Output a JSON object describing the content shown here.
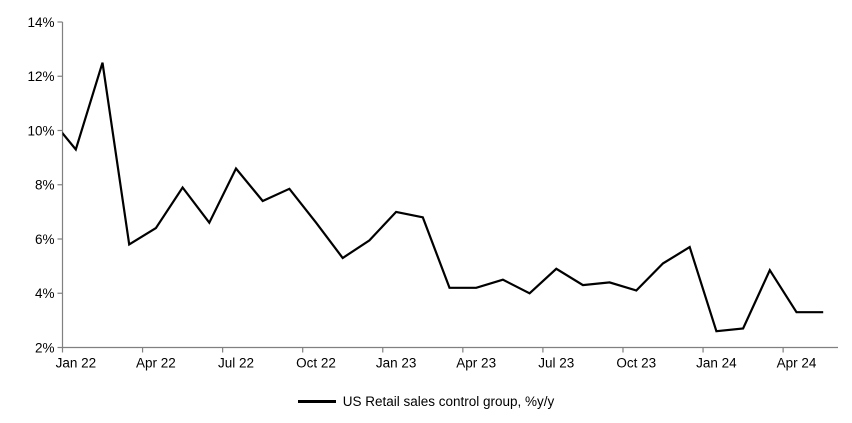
{
  "chart_data": {
    "type": "line",
    "title": "",
    "legend": "US Retail sales control group, %y/y",
    "legend_position": "bottom-center",
    "x": [
      "Dec 21",
      "Jan 22",
      "Feb 22",
      "Mar 22",
      "Apr 22",
      "May 22",
      "Jun 22",
      "Jul 22",
      "Aug 22",
      "Sep 22",
      "Oct 22",
      "Nov 22",
      "Dec 22",
      "Jan 23",
      "Feb 23",
      "Mar 23",
      "Apr 23",
      "May 23",
      "Jun 23",
      "Jul 23",
      "Aug 23",
      "Sep 23",
      "Oct 23",
      "Nov 23",
      "Dec 23",
      "Jan 24",
      "Feb 24",
      "Mar 24",
      "Apr 24",
      "May 24"
    ],
    "values": [
      10.5,
      9.3,
      12.5,
      5.8,
      6.4,
      7.9,
      6.6,
      8.6,
      7.4,
      7.85,
      6.6,
      5.3,
      5.95,
      7.0,
      6.8,
      4.2,
      4.2,
      4.5,
      4.0,
      4.9,
      4.3,
      4.4,
      4.1,
      5.1,
      5.7,
      2.6,
      2.7,
      4.85,
      3.3,
      3.3
    ],
    "note": "First point (Dec 21) lies left of the plot area; its segment is clipped at the y-axis. Points are plotted at category midpoints (Excel between-ticks mode).",
    "x_tick_labels": [
      "Jan 22",
      "Apr 22",
      "Jul 22",
      "Oct 22",
      "Jan 23",
      "Apr 23",
      "Jul 23",
      "Oct 23",
      "Jan 24",
      "Apr 24"
    ],
    "x_tick_every_n_months": 3,
    "y_tick_labels": [
      "2%",
      "4%",
      "6%",
      "8%",
      "10%",
      "12%",
      "14%"
    ],
    "y_tick_values": [
      2,
      4,
      6,
      8,
      10,
      12,
      14
    ],
    "ylim": [
      2,
      14
    ],
    "grid": false,
    "line_color": "#000000",
    "axis_color": "#808080",
    "text_color": "#000000"
  }
}
